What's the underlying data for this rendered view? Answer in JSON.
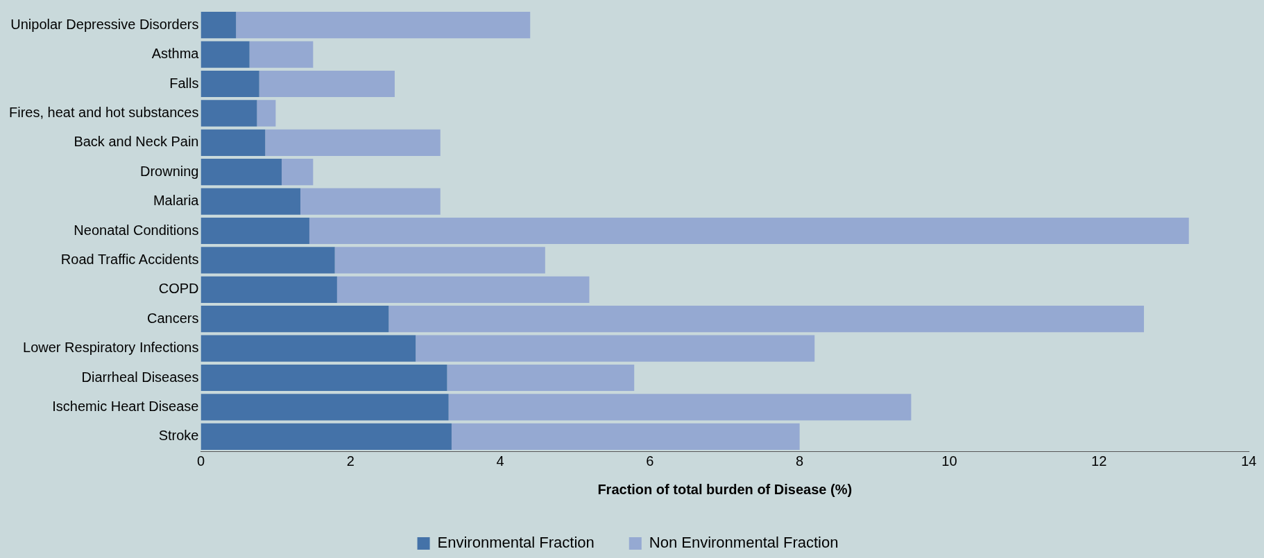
{
  "chart_data": {
    "type": "bar",
    "orientation": "horizontal",
    "stacked": true,
    "categories": [
      "Unipolar Depressive Disorders",
      "Asthma",
      "Falls",
      "Fires, heat and hot substances",
      "Back and Neck Pain",
      "Drowning",
      "Malaria",
      "Neonatal Conditions",
      "Road Traffic Accidents",
      "COPD",
      "Cancers",
      "Lower Respiratory Infections",
      "Diarrheal Diseases",
      "Ischemic Heart Disease",
      "Stroke"
    ],
    "series": [
      {
        "name": "Environmental Fraction",
        "color": "#4472a8",
        "values": [
          0.47,
          0.65,
          0.78,
          0.75,
          0.86,
          1.08,
          1.33,
          1.45,
          1.79,
          1.82,
          2.51,
          2.87,
          3.29,
          3.31,
          3.35
        ]
      },
      {
        "name": "Non Environmental Fraction",
        "color": "#95a9d2",
        "values": [
          3.93,
          0.85,
          1.81,
          0.25,
          2.34,
          0.42,
          1.87,
          11.75,
          2.81,
          3.37,
          10.09,
          5.33,
          2.5,
          6.18,
          4.65
        ]
      }
    ],
    "xlim": [
      0,
      14
    ],
    "xticks": [
      0,
      2,
      4,
      6,
      8,
      10,
      12,
      14
    ],
    "xlabel": "Fraction of total burden of Disease (%)",
    "grid": false,
    "legend": "bottom"
  }
}
